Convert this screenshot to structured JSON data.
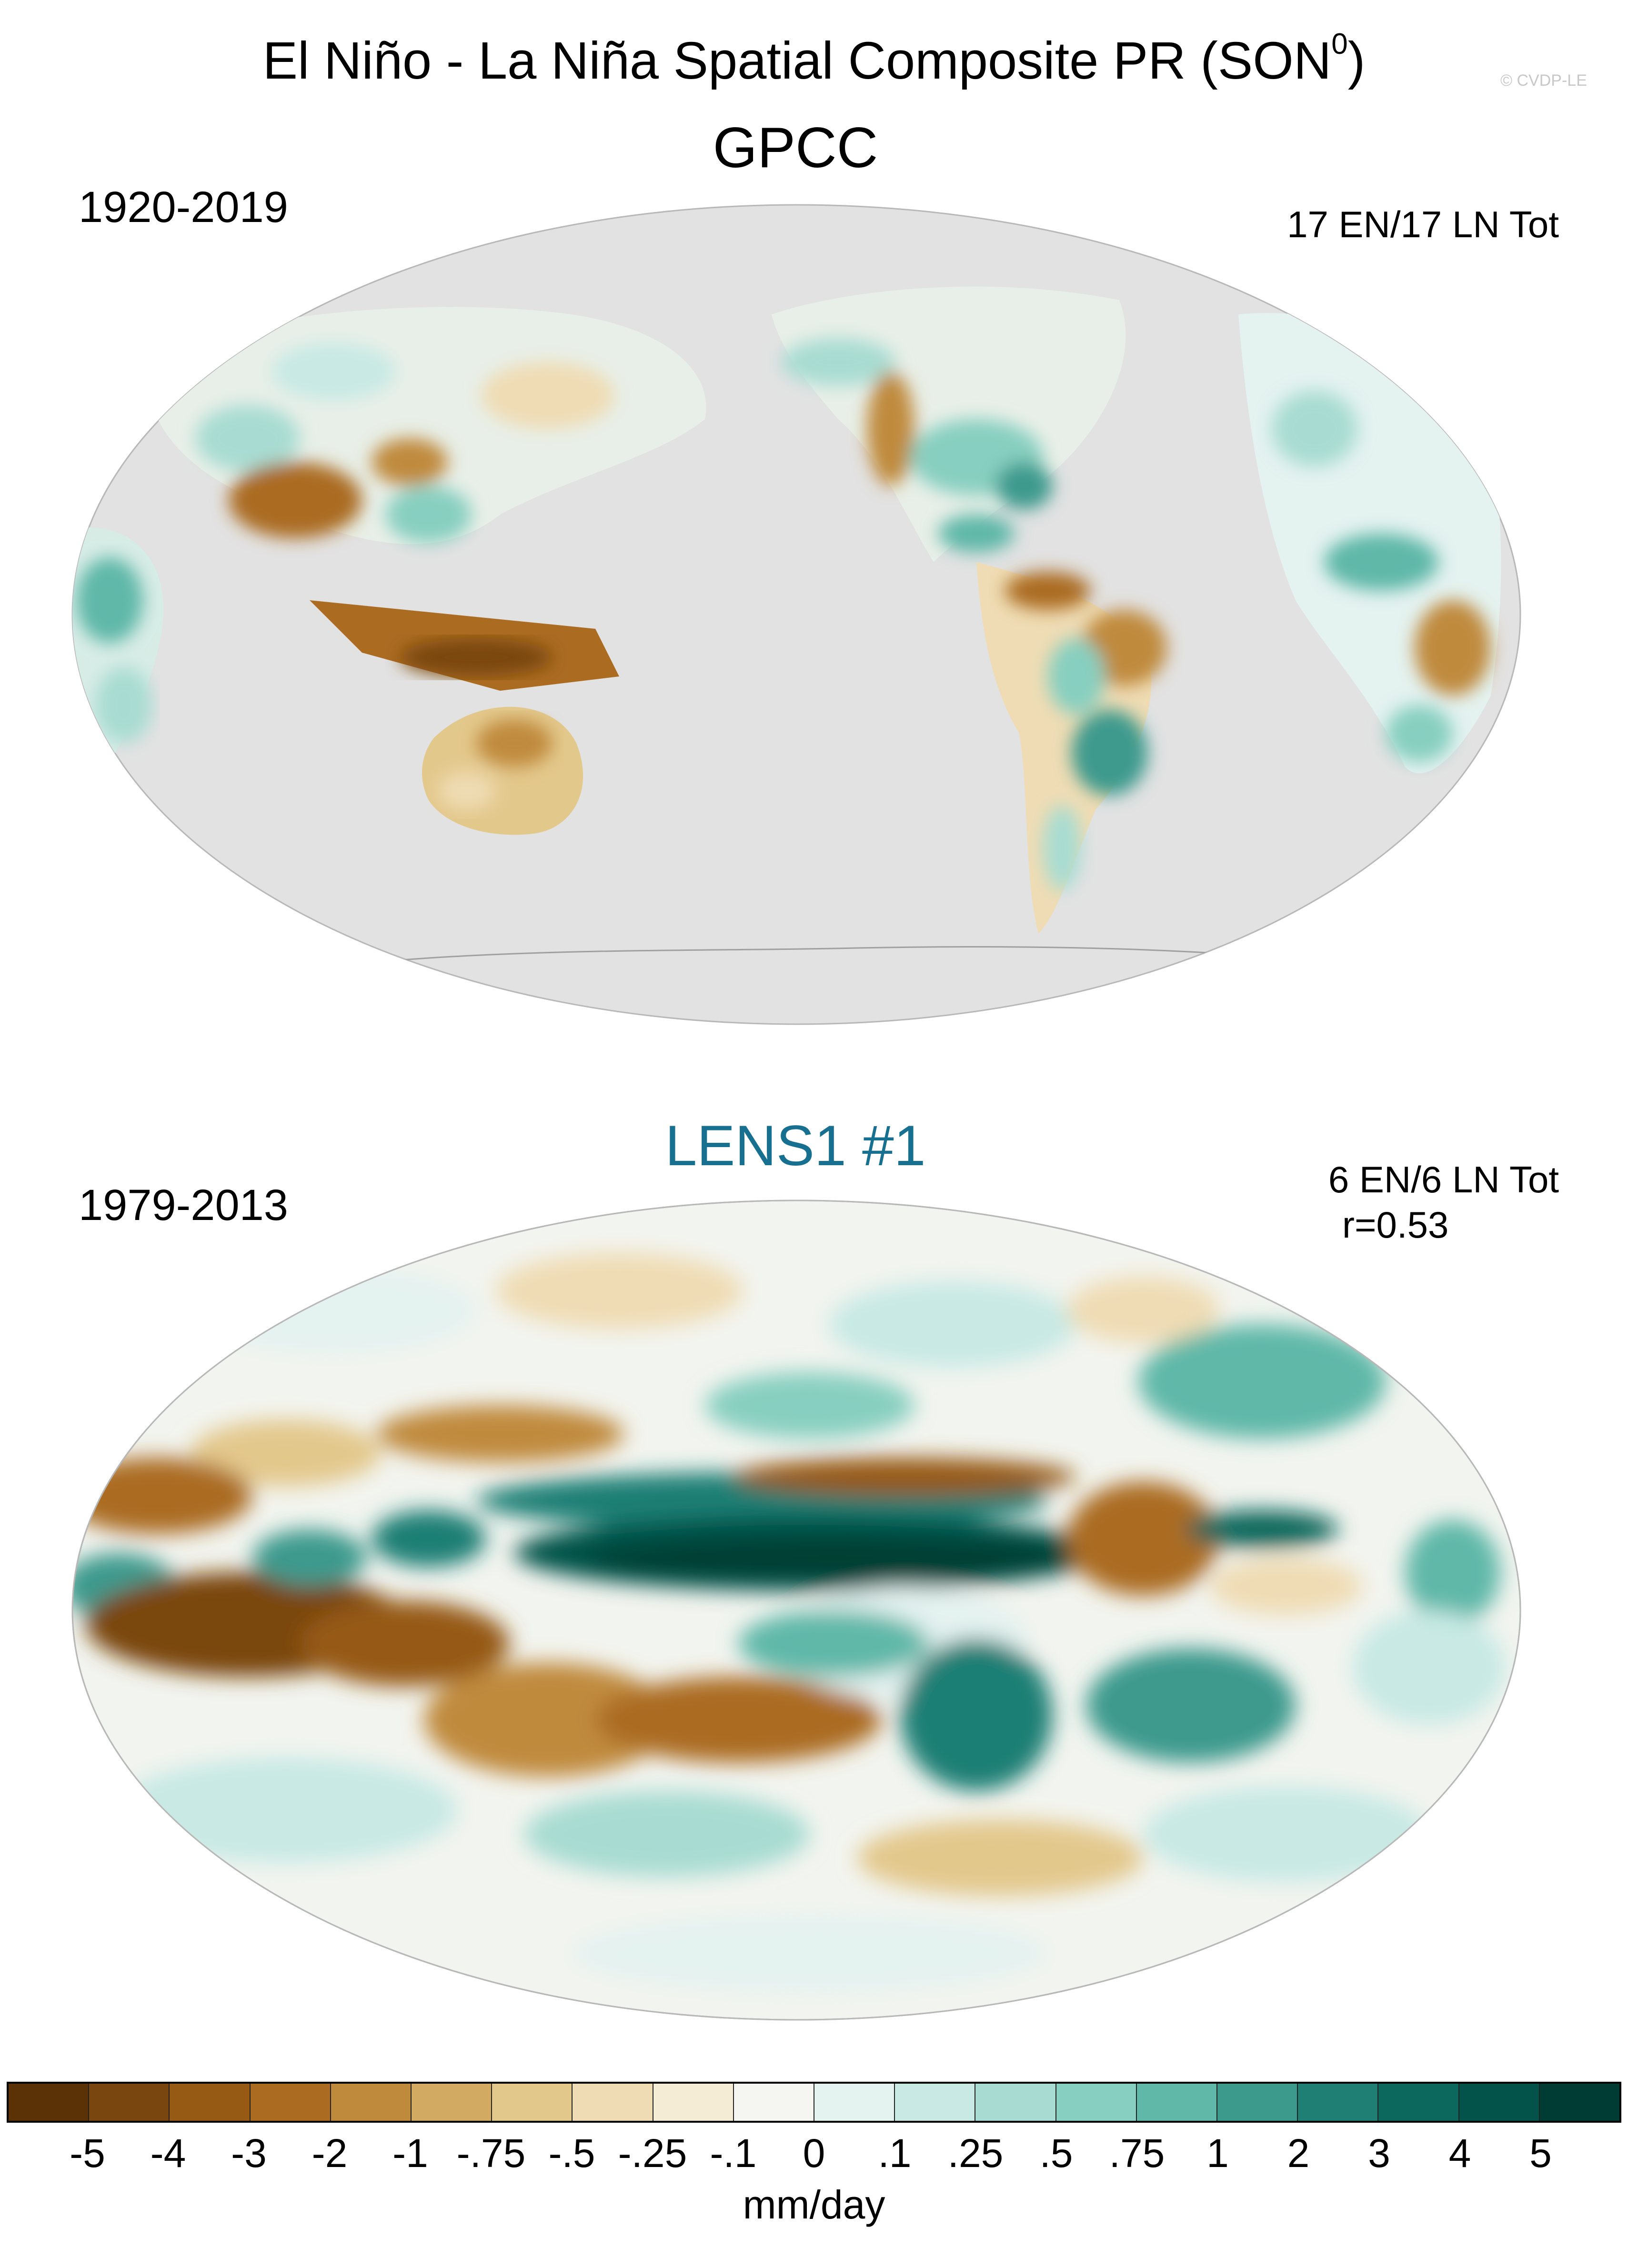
{
  "figure": {
    "title": "El Niño - La Niña Spatial Composite PR (SON",
    "title_superscript": "0",
    "title_suffix": ")",
    "credit": "© CVDP-LE"
  },
  "panels": [
    {
      "title": "GPCC",
      "period": "1920-2019",
      "events": "17 EN/17 LN Tot",
      "stat": ""
    },
    {
      "title": "LENS1 #1",
      "period": "1979-2013",
      "events": "6 EN/6 LN Tot",
      "stat": "r=0.53"
    }
  ],
  "colorbar": {
    "unit": "mm/day",
    "labels": [
      "-5",
      "-4",
      "-3",
      "-2",
      "-1",
      "-.75",
      "-.5",
      "-.25",
      "-.1",
      "0",
      ".1",
      ".25",
      ".5",
      ".75",
      "1",
      "2",
      "3",
      "4",
      "5"
    ],
    "colors": [
      "#5a3206",
      "#7a4610",
      "#965a14",
      "#ab6c22",
      "#c08a3c",
      "#d3aa62",
      "#e3c88c",
      "#efdcb4",
      "#f5ecd6",
      "#f5f5f2",
      "#e4f2f0",
      "#c8e9e4",
      "#a8dcd2",
      "#87cfc0",
      "#5fb8a8",
      "#3c9a8d",
      "#1f7f74",
      "#0c675c",
      "#04534a",
      "#003c33"
    ]
  },
  "colors": {
    "missing_data": "#e2e2e2",
    "panel2_title": "#17708f"
  }
}
